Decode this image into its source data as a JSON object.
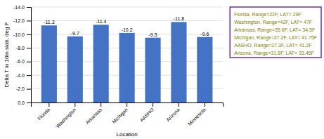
{
  "chart_data": {
    "type": "bar",
    "categories": [
      "Florida",
      "Washington",
      "Arkansas",
      "Michigan",
      "AASHO",
      "Arizona",
      "Minnesota"
    ],
    "values": [
      -11.3,
      -9.7,
      -11.4,
      -10.2,
      -9.5,
      -11.8,
      -9.6
    ],
    "color": "#4472C4",
    "xlabel": "Location",
    "ylabel": "Delta T in 10in slab, deg F",
    "ylim": [
      0.0,
      -14.0
    ],
    "yticks": [
      {
        "value": 0.0,
        "label": "0.0"
      },
      {
        "value": -2.0,
        "label": "-2.0"
      },
      {
        "value": -4.0,
        "label": "-4.0"
      },
      {
        "value": -6.0,
        "label": "-6.0"
      },
      {
        "value": -8.0,
        "label": "-8.0"
      },
      {
        "value": -10.0,
        "label": "-10.0"
      },
      {
        "value": -12.0,
        "label": "-12.0"
      },
      {
        "value": -14.0,
        "label": "-14.0"
      }
    ],
    "grid": true,
    "data_labels": true,
    "legend": "right",
    "legend_entries": [
      "Florida, Range=22F, LAT= 29F",
      "Washington, Range=42F, LAT= 47F",
      "Arkansas, Range=35.6F, LAT= 34.5F",
      "Michigan, Range=37.2F, LAT= 41.75F",
      "AASHO, Range=27.3F, LAT= 41.2F",
      "Arizona, Range=31.8F, LAT= 33.45F"
    ]
  }
}
